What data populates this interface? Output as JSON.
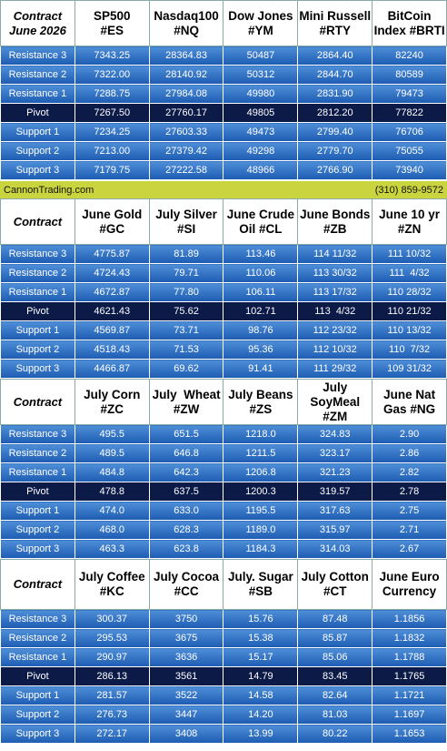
{
  "sections": [
    {
      "header": [
        [
          "Contract",
          "June 2026"
        ],
        [
          "SP500",
          "#ES"
        ],
        [
          "Nasdaq100",
          "#NQ"
        ],
        [
          "Dow Jones",
          "#YM"
        ],
        [
          "Mini Russell",
          "#RTY"
        ],
        [
          "BitCoin",
          "Index #BRTI"
        ]
      ],
      "rows": [
        [
          "Resistance 3",
          "7343.25",
          "28364.83",
          "50487",
          "2864.40",
          "82240"
        ],
        [
          "Resistance 2",
          "7322.00",
          "28140.92",
          "50312",
          "2844.70",
          "80589"
        ],
        [
          "Resistance 1",
          "7288.75",
          "27984.08",
          "49980",
          "2831.90",
          "79473"
        ],
        [
          "Pivot",
          "7267.50",
          "27760.17",
          "49805",
          "2812.20",
          "77822"
        ],
        [
          "Support 1",
          "7234.25",
          "27603.33",
          "49473",
          "2799.40",
          "76706"
        ],
        [
          "Support 2",
          "7213.00",
          "27379.42",
          "49298",
          "2779.70",
          "75055"
        ],
        [
          "Support 3",
          "7179.75",
          "27222.58",
          "48966",
          "2766.90",
          "73940"
        ]
      ]
    },
    {
      "header": [
        [
          "Contract"
        ],
        [
          "June Gold",
          "#GC"
        ],
        [
          "July Silver",
          "#SI"
        ],
        [
          "June Crude",
          "Oil #CL"
        ],
        [
          "June Bonds",
          "#ZB"
        ],
        [
          "June 10 yr",
          "#ZN"
        ]
      ],
      "rows": [
        [
          "Resistance 3",
          "4775.87",
          "81.89",
          "113.46",
          "114 11/32",
          "111 10/32"
        ],
        [
          "Resistance 2",
          "4724.43",
          "79.71",
          "110.06",
          "113 30/32",
          "111  4/32"
        ],
        [
          "Resistance 1",
          "4672.87",
          "77.80",
          "106.11",
          "113 17/32",
          "110 28/32"
        ],
        [
          "Pivot",
          "4621.43",
          "75.62",
          "102.71",
          "113  4/32",
          "110 21/32"
        ],
        [
          "Support 1",
          "4569.87",
          "73.71",
          "98.76",
          "112 23/32",
          "110 13/32"
        ],
        [
          "Support 2",
          "4518.43",
          "71.53",
          "95.36",
          "112 10/32",
          "110  7/32"
        ],
        [
          "Support 3",
          "4466.87",
          "69.62",
          "91.41",
          "111 29/32",
          "109 31/32"
        ]
      ]
    },
    {
      "header": [
        [
          "Contract"
        ],
        [
          "July Corn",
          "#ZC"
        ],
        [
          "July  Wheat",
          "#ZW"
        ],
        [
          "July Beans",
          "#ZS"
        ],
        [
          "July",
          "SoyMeal",
          "#ZM"
        ],
        [
          "June Nat",
          "Gas #NG"
        ]
      ],
      "rows": [
        [
          "Resistance 3",
          "495.5",
          "651.5",
          "1218.0",
          "324.83",
          "2.90"
        ],
        [
          "Resistance 2",
          "489.5",
          "646.8",
          "1211.5",
          "323.17",
          "2.86"
        ],
        [
          "Resistance 1",
          "484.8",
          "642.3",
          "1206.8",
          "321.23",
          "2.82"
        ],
        [
          "Pivot",
          "478.8",
          "637.5",
          "1200.3",
          "319.57",
          "2.78"
        ],
        [
          "Support 1",
          "474.0",
          "633.0",
          "1195.5",
          "317.63",
          "2.75"
        ],
        [
          "Support 2",
          "468.0",
          "628.3",
          "1189.0",
          "315.97",
          "2.71"
        ],
        [
          "Support 3",
          "463.3",
          "623.8",
          "1184.3",
          "314.03",
          "2.67"
        ]
      ]
    },
    {
      "header": [
        [
          "Contract"
        ],
        [
          "July Coffee",
          "#KC"
        ],
        [
          "July Cocoa",
          "#CC"
        ],
        [
          "July. Sugar",
          "#SB"
        ],
        [
          "July Cotton",
          "#CT"
        ],
        [
          "June Euro",
          "Currency"
        ]
      ],
      "rows": [
        [
          "Resistance 3",
          "300.37",
          "3750",
          "15.76",
          "87.48",
          "1.1856"
        ],
        [
          "Resistance 2",
          "295.53",
          "3675",
          "15.38",
          "85.87",
          "1.1832"
        ],
        [
          "Resistance 1",
          "290.97",
          "3636",
          "15.17",
          "85.06",
          "1.1788"
        ],
        [
          "Pivot",
          "286.13",
          "3561",
          "14.79",
          "83.45",
          "1.1765"
        ],
        [
          "Support 1",
          "281.57",
          "3522",
          "14.58",
          "82.64",
          "1.1721"
        ],
        [
          "Support 2",
          "276.73",
          "3447",
          "14.20",
          "81.03",
          "1.1697"
        ],
        [
          "Support 3",
          "272.17",
          "3408",
          "13.99",
          "80.22",
          "1.1653"
        ]
      ]
    }
  ],
  "banner": {
    "site": "CannonTrading.com",
    "phone": "(310) 859-9572"
  }
}
